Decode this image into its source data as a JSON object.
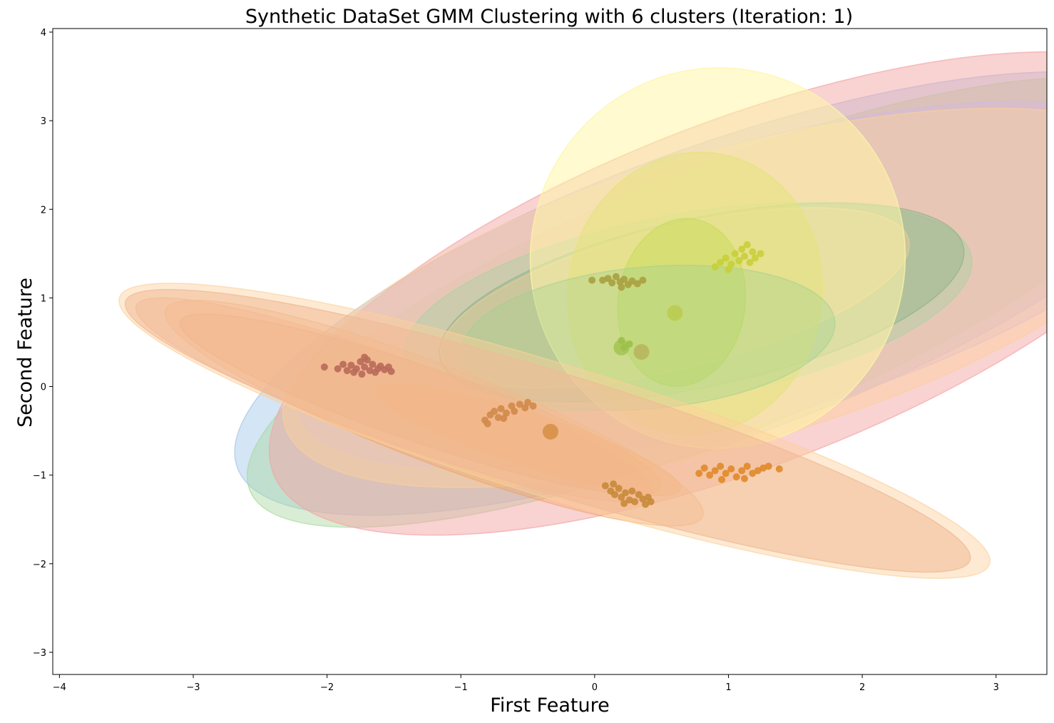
{
  "chart_data": {
    "type": "scatter",
    "title": "Synthetic DataSet GMM Clustering with 6 clusters (Iteration: 1)",
    "xlabel": "First Feature",
    "ylabel": "Second Feature",
    "xlim": [
      -4.05,
      3.38
    ],
    "ylim": [
      -3.25,
      4.04
    ],
    "x_ticks": [
      -4,
      -3,
      -2,
      -1,
      0,
      1,
      2,
      3
    ],
    "y_ticks": [
      -3,
      -2,
      -1,
      0,
      1,
      2,
      3,
      4
    ],
    "x_tick_labels": [
      "−4",
      "−3",
      "−2",
      "−1",
      "0",
      "1",
      "2",
      "3"
    ],
    "y_tick_labels": [
      "−3",
      "−2",
      "−1",
      "0",
      "1",
      "2",
      "3",
      "4"
    ],
    "grid": false,
    "ellipses": [
      {
        "cx": 0.9,
        "cy": 1.05,
        "w": 7.6,
        "h": 3.3,
        "angle": 20,
        "color": "#9fc5e8",
        "opacity": 0.45
      },
      {
        "cx": 0.9,
        "cy": 0.95,
        "w": 7.5,
        "h": 3.0,
        "angle": 22,
        "color": "#a8d8a0",
        "opacity": 0.45
      },
      {
        "cx": 1.1,
        "cy": 1.05,
        "w": 7.5,
        "h": 3.9,
        "angle": 21,
        "color": "#f4a5a5",
        "opacity": 0.5
      },
      {
        "cx": 1.1,
        "cy": 1.15,
        "w": 6.9,
        "h": 3.1,
        "angle": 16,
        "color": "#d4b8e0",
        "opacity": 0.45
      },
      {
        "cx": 1.0,
        "cy": 1.0,
        "w": 6.9,
        "h": 3.3,
        "angle": 16,
        "color": "#fcd09b",
        "opacity": 0.45
      },
      {
        "cx": 0.7,
        "cy": 0.9,
        "w": 4.3,
        "h": 2.1,
        "angle": 10,
        "color": "#a3d3a6",
        "opacity": 0.4
      },
      {
        "cx": 0.8,
        "cy": 0.95,
        "w": 4.0,
        "h": 1.9,
        "angle": 12,
        "color": "#7fae7f",
        "opacity": 0.35
      },
      {
        "cx": 0.6,
        "cy": 1.0,
        "w": 3.6,
        "h": 1.6,
        "angle": 14,
        "color": "#fcd09b",
        "opacity": 0.35
      },
      {
        "cx": 0.92,
        "cy": 1.45,
        "w": 2.8,
        "h": 4.3,
        "angle": -14,
        "color": "#fff6a8",
        "opacity": 0.55
      },
      {
        "cx": 0.75,
        "cy": 1.05,
        "w": 1.9,
        "h": 3.2,
        "angle": -10,
        "color": "#e6e27a",
        "opacity": 0.5
      },
      {
        "cx": 0.65,
        "cy": 0.95,
        "w": 0.95,
        "h": 1.9,
        "angle": -8,
        "color": "#c8dc5a",
        "opacity": 0.5
      },
      {
        "cx": 0.4,
        "cy": 0.55,
        "w": 2.8,
        "h": 1.6,
        "angle": 5,
        "color": "#9fd090",
        "opacity": 0.35
      },
      {
        "cx": -1.5,
        "cy": -0.15,
        "w": 4.1,
        "h": 0.95,
        "angle": -20,
        "color": "#f0a090",
        "opacity": 0.4
      },
      {
        "cx": -1.2,
        "cy": -0.3,
        "w": 4.3,
        "h": 1.1,
        "angle": -21,
        "color": "#f2a05a",
        "opacity": 0.35
      },
      {
        "cx": -1.3,
        "cy": -0.2,
        "w": 3.8,
        "h": 0.85,
        "angle": -19,
        "color": "#e8905a",
        "opacity": 0.35
      },
      {
        "cx": -0.5,
        "cy": -0.6,
        "w": 2.4,
        "h": 0.6,
        "angle": -18,
        "color": "#f3a24e",
        "opacity": 0.45
      },
      {
        "cx": -0.35,
        "cy": -0.5,
        "w": 6.6,
        "h": 1.35,
        "angle": -17,
        "color": "#e5a894",
        "opacity": 0.55
      },
      {
        "cx": -0.3,
        "cy": -0.5,
        "w": 6.8,
        "h": 1.5,
        "angle": -17,
        "color": "#fcd09b",
        "opacity": 0.45
      }
    ],
    "clusters": [
      {
        "color": "#b86a5a",
        "points": [
          [
            -2.02,
            0.22
          ],
          [
            -1.92,
            0.2
          ],
          [
            -1.88,
            0.25
          ],
          [
            -1.85,
            0.18
          ],
          [
            -1.82,
            0.24
          ],
          [
            -1.78,
            0.2
          ],
          [
            -1.75,
            0.28
          ],
          [
            -1.72,
            0.22
          ],
          [
            -1.7,
            0.3
          ],
          [
            -1.68,
            0.18
          ],
          [
            -1.66,
            0.25
          ],
          [
            -1.62,
            0.2
          ],
          [
            -1.6,
            0.23
          ],
          [
            -1.57,
            0.19
          ],
          [
            -1.54,
            0.22
          ],
          [
            -1.52,
            0.17
          ],
          [
            -1.8,
            0.16
          ],
          [
            -1.74,
            0.14
          ],
          [
            -1.64,
            0.16
          ],
          [
            -1.72,
            0.33
          ]
        ]
      },
      {
        "color": "#d08a4a",
        "points": [
          [
            -0.82,
            -0.38
          ],
          [
            -0.78,
            -0.32
          ],
          [
            -0.75,
            -0.28
          ],
          [
            -0.72,
            -0.35
          ],
          [
            -0.7,
            -0.25
          ],
          [
            -0.66,
            -0.3
          ],
          [
            -0.62,
            -0.22
          ],
          [
            -0.6,
            -0.28
          ],
          [
            -0.56,
            -0.2
          ],
          [
            -0.52,
            -0.24
          ],
          [
            -0.5,
            -0.18
          ],
          [
            -0.46,
            -0.22
          ],
          [
            -0.8,
            -0.42
          ],
          [
            -0.68,
            -0.36
          ]
        ]
      },
      {
        "color": "#c8893a",
        "points": [
          [
            0.08,
            -1.12
          ],
          [
            0.12,
            -1.18
          ],
          [
            0.15,
            -1.22
          ],
          [
            0.18,
            -1.15
          ],
          [
            0.2,
            -1.25
          ],
          [
            0.23,
            -1.2
          ],
          [
            0.26,
            -1.28
          ],
          [
            0.28,
            -1.18
          ],
          [
            0.3,
            -1.3
          ],
          [
            0.33,
            -1.22
          ],
          [
            0.36,
            -1.27
          ],
          [
            0.38,
            -1.33
          ],
          [
            0.4,
            -1.25
          ],
          [
            0.42,
            -1.3
          ],
          [
            0.22,
            -1.32
          ],
          [
            0.14,
            -1.1
          ]
        ]
      },
      {
        "color": "#e08a2a",
        "points": [
          [
            0.78,
            -0.98
          ],
          [
            0.82,
            -0.92
          ],
          [
            0.86,
            -1.0
          ],
          [
            0.9,
            -0.95
          ],
          [
            0.94,
            -0.9
          ],
          [
            0.98,
            -0.98
          ],
          [
            1.02,
            -0.93
          ],
          [
            1.06,
            -1.02
          ],
          [
            1.1,
            -0.95
          ],
          [
            1.14,
            -0.9
          ],
          [
            1.18,
            -0.98
          ],
          [
            1.22,
            -0.95
          ],
          [
            1.26,
            -0.92
          ],
          [
            1.3,
            -0.9
          ],
          [
            1.38,
            -0.93
          ],
          [
            0.95,
            -1.05
          ],
          [
            1.12,
            -1.04
          ]
        ]
      },
      {
        "color": "#aaa040",
        "points": [
          [
            -0.02,
            1.2
          ],
          [
            0.06,
            1.2
          ],
          [
            0.1,
            1.22
          ],
          [
            0.13,
            1.17
          ],
          [
            0.16,
            1.24
          ],
          [
            0.19,
            1.18
          ],
          [
            0.22,
            1.21
          ],
          [
            0.25,
            1.15
          ],
          [
            0.28,
            1.19
          ],
          [
            0.32,
            1.16
          ],
          [
            0.36,
            1.2
          ],
          [
            0.2,
            1.12
          ]
        ]
      },
      {
        "color": "#c8cf3a",
        "points": [
          [
            0.9,
            1.35
          ],
          [
            0.94,
            1.4
          ],
          [
            0.98,
            1.45
          ],
          [
            1.02,
            1.38
          ],
          [
            1.05,
            1.5
          ],
          [
            1.08,
            1.42
          ],
          [
            1.1,
            1.55
          ],
          [
            1.12,
            1.47
          ],
          [
            1.14,
            1.6
          ],
          [
            1.16,
            1.4
          ],
          [
            1.18,
            1.52
          ],
          [
            1.2,
            1.45
          ],
          [
            1.24,
            1.5
          ],
          [
            1.0,
            1.32
          ]
        ]
      },
      {
        "color": "#9cc048",
        "points": [
          [
            0.22,
            0.44
          ],
          [
            0.26,
            0.48
          ],
          [
            0.2,
            0.52
          ]
        ]
      }
    ],
    "big_markers": [
      {
        "x": 0.35,
        "y": 0.39,
        "color": "#b5ad58"
      },
      {
        "x": 0.2,
        "y": 0.44,
        "color": "#9cc048"
      },
      {
        "x": 0.6,
        "y": 0.83,
        "color": "#b8c848"
      },
      {
        "x": -0.33,
        "y": -0.51,
        "color": "#d08a3a"
      }
    ]
  }
}
